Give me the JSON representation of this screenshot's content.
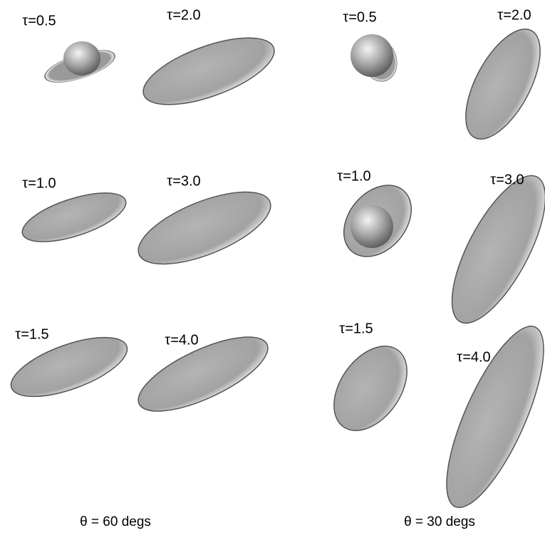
{
  "panels": [
    {
      "caption": "θ = 60 degs",
      "items": [
        {
          "label": "τ=0.5"
        },
        {
          "label": "τ=2.0"
        },
        {
          "label": "τ=1.0"
        },
        {
          "label": "τ=3.0"
        },
        {
          "label": "τ=1.5"
        },
        {
          "label": "τ=4.0"
        }
      ]
    },
    {
      "caption": "θ = 30 degs",
      "items": [
        {
          "label": "τ=0.5"
        },
        {
          "label": "τ=2.0"
        },
        {
          "label": "τ=1.0"
        },
        {
          "label": "τ=3.0"
        },
        {
          "label": "τ=1.5"
        },
        {
          "label": "τ=4.0"
        }
      ]
    }
  ]
}
